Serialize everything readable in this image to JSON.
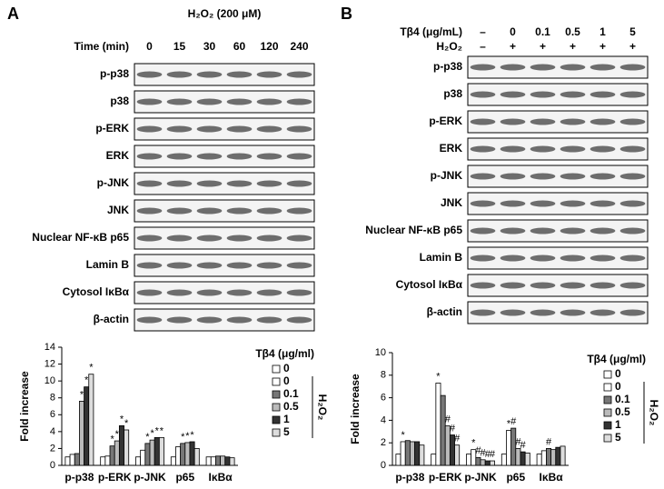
{
  "panels": [
    {
      "label": "A",
      "header": "H₂O₂ (200 μM)",
      "lane_rows": [
        {
          "label": "Time (min)",
          "values": [
            "0",
            "15",
            "30",
            "60",
            "120",
            "240"
          ]
        }
      ],
      "rows": [
        "p-p38",
        "p38",
        "p-ERK",
        "ERK",
        "p-JNK",
        "JNK",
        "Nuclear NF-κB p65",
        "Lamin B",
        "Cytosol IκBα",
        "β-actin"
      ]
    },
    {
      "label": "B",
      "lane_rows": [
        {
          "label": "Tβ4 (μg/mL)",
          "values": [
            "–",
            "0",
            "0.1",
            "0.5",
            "1",
            "5"
          ]
        },
        {
          "label": "H₂O₂",
          "values": [
            "–",
            "+",
            "+",
            "+",
            "+",
            "+"
          ]
        }
      ],
      "rows": [
        "p-p38",
        "p38",
        "p-ERK",
        "ERK",
        "p-JNK",
        "JNK",
        "Nuclear NF-κB p65",
        "Lamin B",
        "Cytosol IκBα",
        "β-actin"
      ]
    }
  ],
  "chart_data": [
    {
      "type": "bar",
      "y_label": "Fold increase",
      "ylim": [
        0,
        14
      ],
      "yticks": [
        0,
        2,
        4,
        6,
        8,
        10,
        12,
        14
      ],
      "legend_title": "Tβ4 (μg/ml)",
      "legend_group_label": "H₂O₂",
      "categories": [
        "p-p38",
        "p-ERK",
        "p-JNK",
        "p65",
        "IκBα"
      ],
      "series": [
        {
          "name": "0",
          "color": "#ffffff",
          "values": [
            1,
            1,
            1,
            1,
            1
          ],
          "markers": [
            null,
            null,
            null,
            null,
            null
          ]
        },
        {
          "name": "0",
          "color": "#ffffff",
          "values": [
            1.3,
            1.1,
            1.8,
            2.2,
            1.0
          ],
          "markers": [
            null,
            null,
            null,
            null,
            null
          ]
        },
        {
          "name": "0.1",
          "color": "#777777",
          "values": [
            1.4,
            2.3,
            2.6,
            2.6,
            1.1
          ],
          "markers": [
            null,
            "*",
            "*",
            "*",
            null
          ]
        },
        {
          "name": "0.5",
          "color": "#bbbbbb",
          "values": [
            7.6,
            2.9,
            3.0,
            2.7,
            1.1
          ],
          "markers": [
            "*",
            "*",
            "*",
            "*",
            null
          ]
        },
        {
          "name": "1",
          "color": "#333333",
          "values": [
            9.3,
            4.7,
            3.3,
            2.8,
            1.0
          ],
          "markers": [
            "*",
            "*",
            "*",
            "*",
            null
          ]
        },
        {
          "name": "5",
          "color": "#dddddd",
          "values": [
            10.8,
            4.2,
            3.3,
            2.0,
            0.9
          ],
          "markers": [
            "*",
            "*",
            "*",
            null,
            null
          ]
        }
      ]
    },
    {
      "type": "bar",
      "y_label": "Fold increase",
      "ylim": [
        0,
        10
      ],
      "yticks": [
        0,
        2,
        4,
        6,
        8,
        10
      ],
      "legend_title": "Tβ4 (μg/ml)",
      "legend_group_label": "H₂O₂",
      "categories": [
        "p-p38",
        "p-ERK",
        "p-JNK",
        "p65",
        "IκBα"
      ],
      "series": [
        {
          "name": "0",
          "color": "#ffffff",
          "values": [
            1,
            1,
            1,
            1,
            1
          ],
          "markers": [
            null,
            null,
            null,
            null,
            null
          ]
        },
        {
          "name": "0",
          "color": "#ffffff",
          "values": [
            2.1,
            7.3,
            1.4,
            3.1,
            1.3
          ],
          "markers": [
            "*",
            "*",
            "*",
            "*",
            null
          ]
        },
        {
          "name": "0.1",
          "color": "#777777",
          "values": [
            2.2,
            6.2,
            0.7,
            3.3,
            1.5
          ],
          "markers": [
            null,
            null,
            "#",
            "#",
            "#"
          ]
        },
        {
          "name": "0.5",
          "color": "#bbbbbb",
          "values": [
            2.1,
            3.5,
            0.5,
            1.5,
            1.4
          ],
          "markers": [
            null,
            "#",
            "#",
            "#",
            null
          ]
        },
        {
          "name": "1",
          "color": "#333333",
          "values": [
            2.1,
            2.7,
            0.4,
            1.2,
            1.6
          ],
          "markers": [
            null,
            "#",
            "#",
            "#",
            null
          ]
        },
        {
          "name": "5",
          "color": "#dddddd",
          "values": [
            1.8,
            1.8,
            0.4,
            1.1,
            1.7
          ],
          "markers": [
            null,
            "#",
            "#",
            null,
            null
          ]
        }
      ]
    }
  ]
}
